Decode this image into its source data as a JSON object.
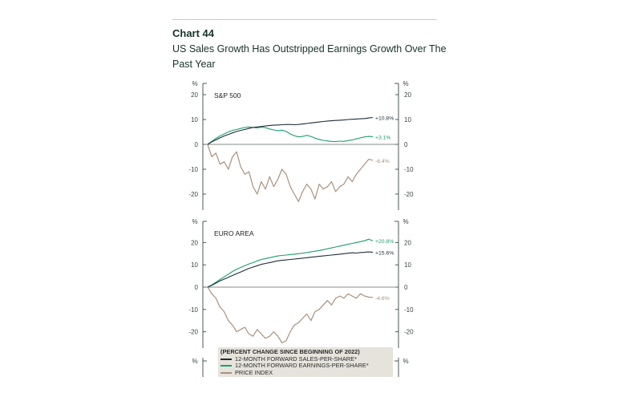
{
  "header": {
    "chart_number": "Chart 44",
    "title": "US Sales Growth Has Outstripped Earnings Growth Over The Past Year"
  },
  "colors": {
    "sales": "#1f2d3a",
    "earnings": "#1e9e6e",
    "price": "#a8927e",
    "axis": "#4a5a55"
  },
  "legend": {
    "header": "(PERCENT CHANGE SINCE BEGINNING OF 2022)",
    "items": [
      {
        "label": "12-MONTH FORWARD SALES-PER-SHARE*",
        "color": "#1f2d3a"
      },
      {
        "label": "12-MONTH FORWARD EARNINGS-PER-SHARE*",
        "color": "#1e9e6e"
      },
      {
        "label": "PRICE INDEX",
        "color": "#a8927e"
      }
    ]
  },
  "chart_data": [
    {
      "type": "line",
      "panel_label": "S&P 500",
      "axis_unit": "%",
      "ylim": [
        -26,
        24
      ],
      "yticks": [
        20,
        10,
        0,
        -10,
        -20
      ],
      "x": [
        0,
        1,
        2,
        3,
        4,
        5,
        6,
        7,
        8,
        9,
        10,
        11,
        12,
        13,
        14,
        15,
        16,
        17,
        18,
        19,
        20,
        21,
        22,
        23,
        24,
        25,
        26,
        27,
        28,
        29,
        30,
        31,
        32,
        33,
        34,
        35,
        36,
        37,
        38,
        39,
        40
      ],
      "series": [
        {
          "key": "sales",
          "values": [
            0,
            1,
            1.8,
            2.6,
            3.4,
            4,
            4.6,
            5.2,
            5.6,
            6,
            6.4,
            6.8,
            7,
            7.2,
            7.4,
            7.6,
            7.7,
            7.8,
            7.9,
            8,
            8,
            7.9,
            8,
            8.2,
            8.4,
            8.6,
            8.8,
            9,
            9.2,
            9.4,
            9.5,
            9.6,
            9.7,
            9.8,
            10,
            10.1,
            10.2,
            10.3,
            10.4,
            10.6,
            10.8
          ],
          "end_label": "+10.8%"
        },
        {
          "key": "earnings",
          "values": [
            0,
            1.2,
            2.4,
            3.4,
            4.2,
            5,
            5.6,
            6,
            6.4,
            6.8,
            7,
            6.8,
            6.6,
            6.9,
            6.7,
            6.2,
            5.8,
            5.5,
            5.7,
            5.2,
            4.2,
            3.5,
            3,
            3.2,
            3.6,
            3.2,
            2.5,
            2,
            1.6,
            1.4,
            1.2,
            1.1,
            1.3,
            1.2,
            1.5,
            1.8,
            2.2,
            2.6,
            3,
            3.2,
            3.1
          ],
          "end_label": "+3.1%"
        },
        {
          "key": "price",
          "values": [
            0,
            -5,
            -3.5,
            -8,
            -7,
            -10,
            -5,
            -3,
            -9,
            -12,
            -11,
            -17,
            -20,
            -15,
            -18,
            -13,
            -17,
            -14,
            -10,
            -12,
            -17,
            -20,
            -23,
            -19,
            -16,
            -18,
            -22,
            -16,
            -18,
            -17,
            -15,
            -19,
            -17,
            -16,
            -13,
            -15,
            -12,
            -10,
            -8,
            -6,
            -6.4
          ],
          "end_label": "-6.4%"
        }
      ]
    },
    {
      "type": "line",
      "panel_label": "EURO AREA",
      "axis_unit": "%",
      "ylim": [
        -26,
        24
      ],
      "yticks": [
        20,
        10,
        0,
        -10,
        -20
      ],
      "x": [
        0,
        1,
        2,
        3,
        4,
        5,
        6,
        7,
        8,
        9,
        10,
        11,
        12,
        13,
        14,
        15,
        16,
        17,
        18,
        19,
        20,
        21,
        22,
        23,
        24,
        25,
        26,
        27,
        28,
        29,
        30,
        31,
        32,
        33,
        34,
        35,
        36,
        37,
        38,
        39,
        40
      ],
      "series": [
        {
          "key": "sales",
          "values": [
            0,
            0.8,
            1.8,
            2.8,
            3.6,
            4.4,
            5.2,
            6,
            6.8,
            7.6,
            8.4,
            9,
            9.6,
            10.2,
            10.6,
            11,
            11.4,
            11.8,
            12,
            12.2,
            12.4,
            12.6,
            12.8,
            13,
            13.2,
            13.4,
            13.6,
            13.8,
            14,
            14.2,
            14.4,
            14.6,
            14.8,
            15,
            15.2,
            15.4,
            15.3,
            15.5,
            15.6,
            15.8,
            15.6
          ],
          "end_label": "+15.6%"
        },
        {
          "key": "earnings",
          "values": [
            0,
            1,
            2.2,
            3.4,
            4.6,
            5.8,
            7,
            8,
            8.8,
            9.6,
            10.4,
            11,
            11.8,
            12.4,
            12.8,
            13.2,
            13.6,
            14,
            14.2,
            14.4,
            14.6,
            14.8,
            15,
            15.2,
            15.5,
            15.8,
            16.1,
            16.4,
            16.8,
            17.2,
            17.6,
            18,
            18.4,
            18.8,
            19.2,
            19.6,
            20,
            20.4,
            20.8,
            21.5,
            20.8
          ],
          "end_label": "+20.8%"
        },
        {
          "key": "price",
          "values": [
            0,
            -3,
            -5,
            -9,
            -11,
            -15,
            -17,
            -20,
            -19,
            -18,
            -21,
            -22,
            -19,
            -21,
            -23,
            -22,
            -20,
            -22,
            -25,
            -24,
            -20,
            -17,
            -16,
            -14,
            -12,
            -15,
            -11,
            -10,
            -8,
            -6,
            -8,
            -5,
            -4,
            -5,
            -3,
            -4,
            -5,
            -3,
            -4,
            -4.5,
            -4.6
          ],
          "end_label": "-4.6%"
        }
      ]
    }
  ],
  "third_panel": {
    "axis_unit": "%"
  }
}
